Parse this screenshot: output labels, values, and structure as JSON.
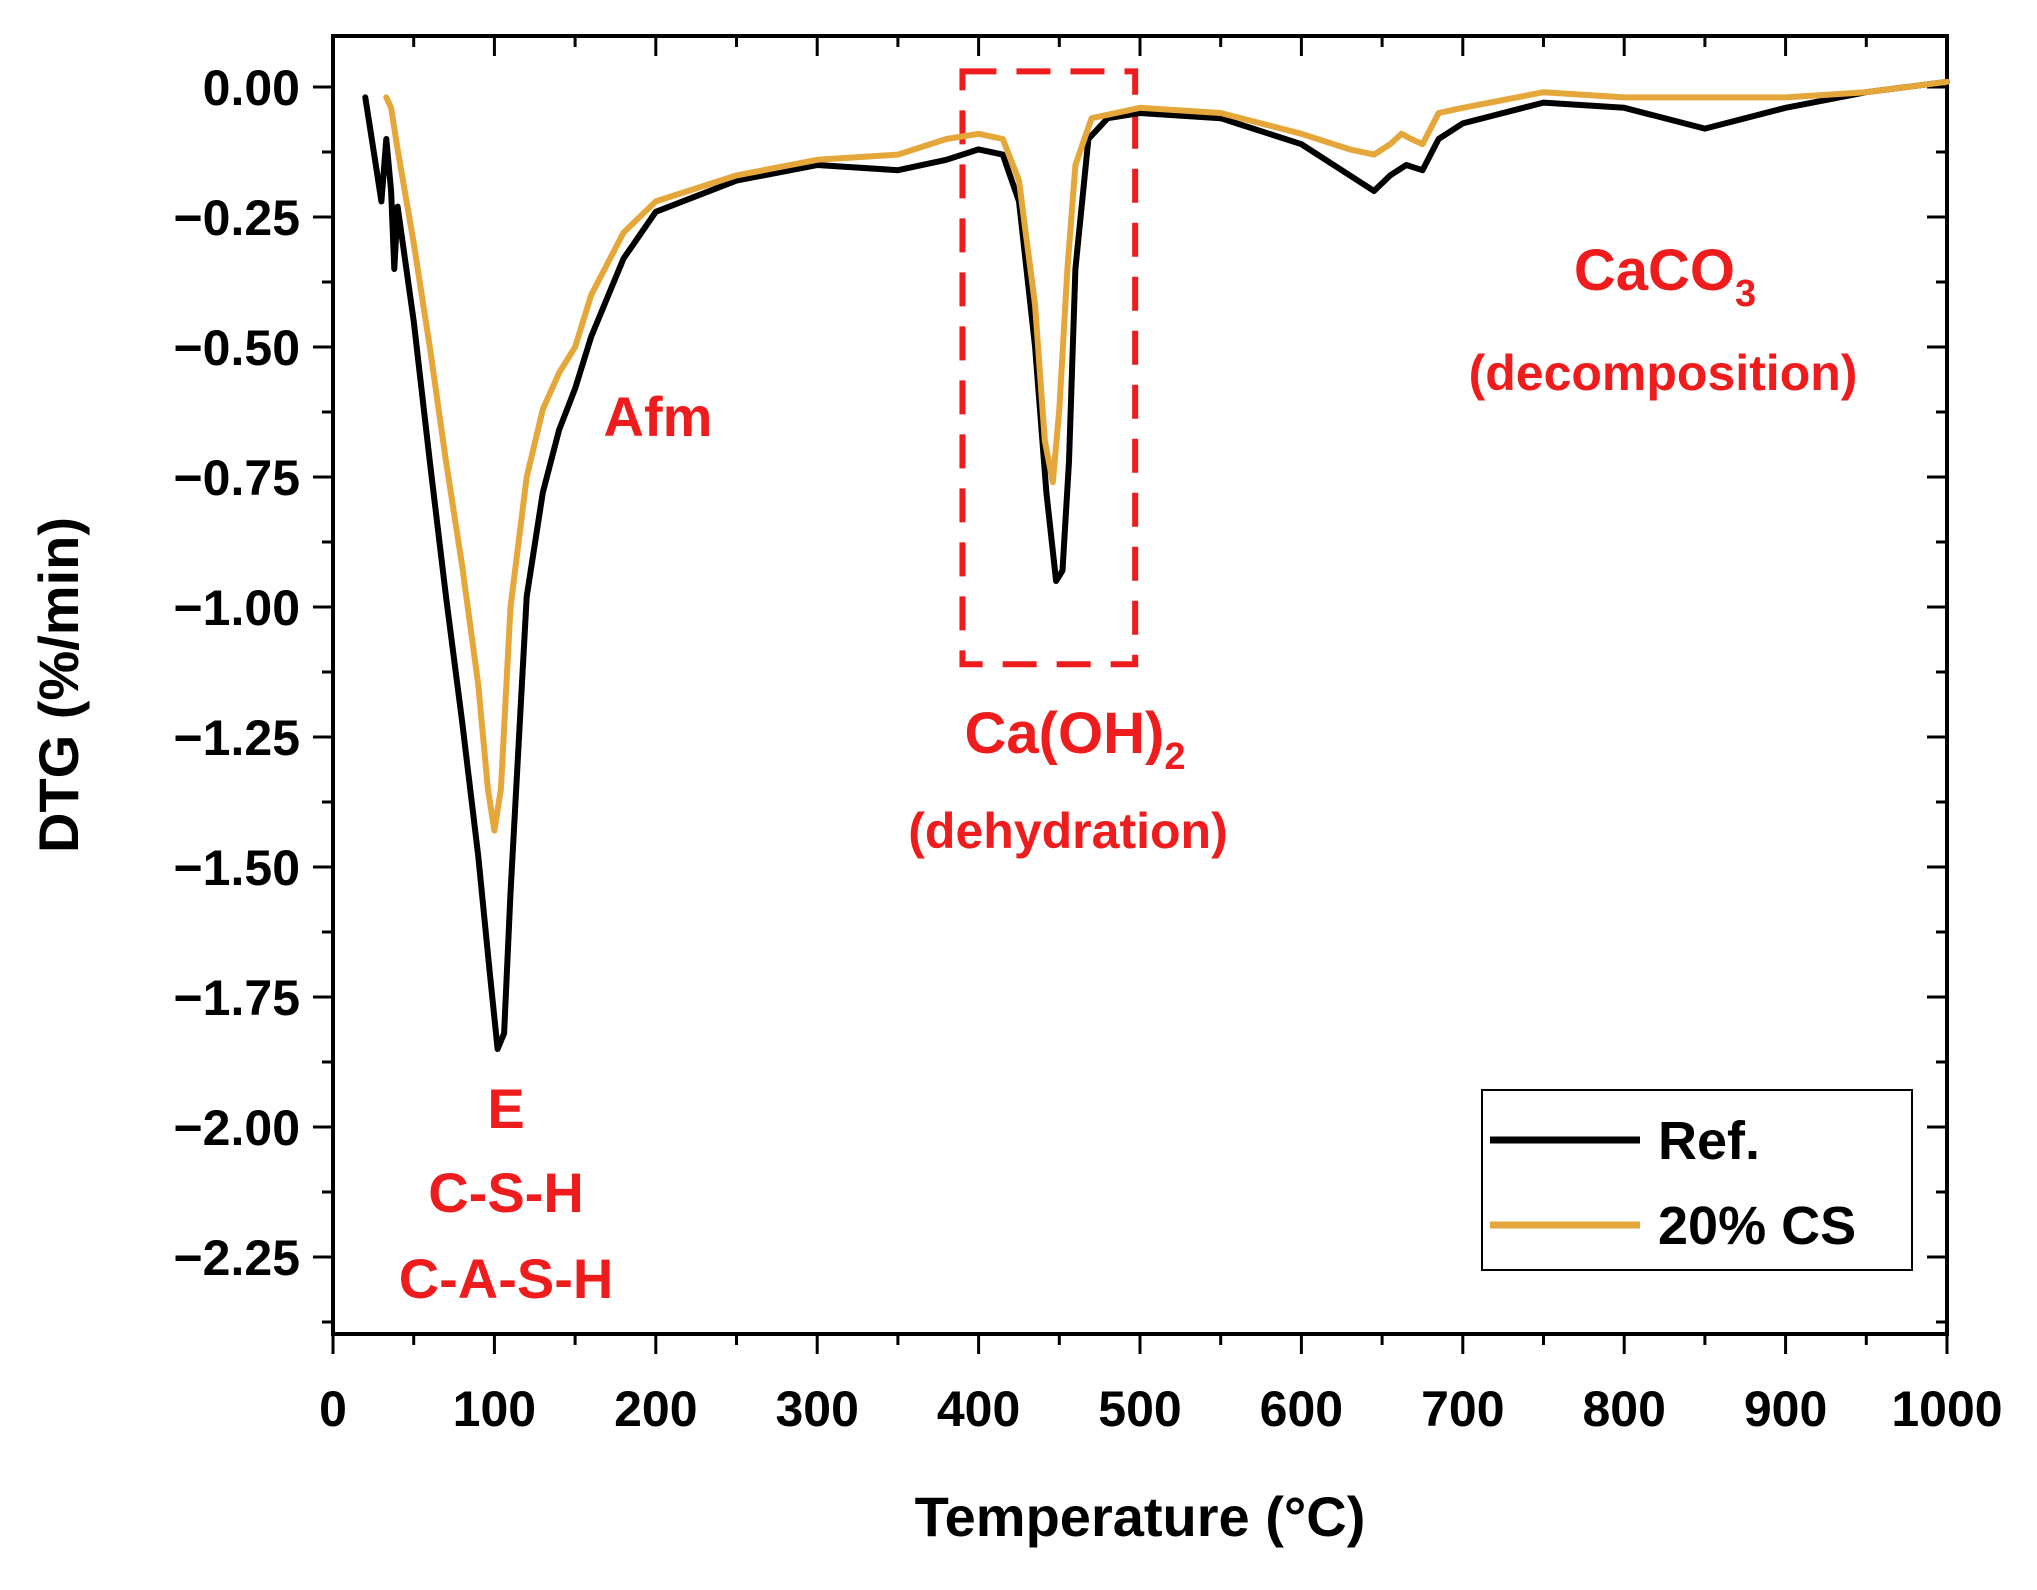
{
  "chart_data": {
    "type": "line",
    "title": "",
    "xlabel": "Temperature (°C)",
    "ylabel": "DTG (%/min)",
    "xlim": [
      0,
      1000
    ],
    "ylim": [
      -2.4,
      0.1
    ],
    "xticks": [
      0,
      100,
      200,
      300,
      400,
      500,
      600,
      700,
      800,
      900,
      1000
    ],
    "yticks": [
      0.0,
      -0.25,
      -0.5,
      -0.75,
      -1.0,
      -1.25,
      -1.5,
      -1.75,
      -2.0,
      -2.25
    ],
    "ytick_labels": [
      "0.00",
      "−0.25",
      "−0.50",
      "−0.75",
      "−1.00",
      "−1.25",
      "−1.50",
      "−1.75",
      "−2.00",
      "−2.25"
    ],
    "grid": false,
    "legend_position": "bottom-right",
    "series": [
      {
        "name": "Ref.",
        "color": "#000000",
        "x": [
          20,
          25,
          30,
          33,
          36,
          38,
          40,
          50,
          60,
          70,
          80,
          90,
          97,
          102,
          106,
          110,
          120,
          130,
          140,
          150,
          160,
          180,
          200,
          250,
          300,
          350,
          380,
          400,
          415,
          425,
          435,
          442,
          448,
          452,
          456,
          460,
          468,
          480,
          500,
          550,
          600,
          630,
          645,
          655,
          665,
          675,
          685,
          700,
          750,
          800,
          850,
          900,
          950,
          1000
        ],
        "y": [
          -0.02,
          -0.12,
          -0.22,
          -0.1,
          -0.2,
          -0.35,
          -0.23,
          -0.45,
          -0.72,
          -0.98,
          -1.22,
          -1.48,
          -1.7,
          -1.85,
          -1.82,
          -1.55,
          -0.98,
          -0.78,
          -0.66,
          -0.58,
          -0.48,
          -0.33,
          -0.24,
          -0.18,
          -0.15,
          -0.16,
          -0.14,
          -0.12,
          -0.13,
          -0.22,
          -0.5,
          -0.78,
          -0.95,
          -0.93,
          -0.72,
          -0.35,
          -0.1,
          -0.06,
          -0.05,
          -0.06,
          -0.11,
          -0.17,
          -0.2,
          -0.17,
          -0.15,
          -0.16,
          -0.1,
          -0.07,
          -0.03,
          -0.04,
          -0.08,
          -0.04,
          -0.01,
          0.01
        ]
      },
      {
        "name": "20% CS",
        "color": "#e6a73a",
        "x": [
          33,
          36,
          40,
          50,
          60,
          70,
          80,
          90,
          96,
          100,
          104,
          110,
          120,
          130,
          140,
          150,
          160,
          180,
          200,
          250,
          300,
          350,
          380,
          400,
          415,
          425,
          435,
          441,
          446,
          450,
          455,
          460,
          470,
          500,
          550,
          600,
          630,
          645,
          655,
          662,
          668,
          675,
          685,
          700,
          750,
          800,
          850,
          900,
          950,
          1000
        ],
        "y": [
          -0.02,
          -0.04,
          -0.12,
          -0.3,
          -0.5,
          -0.72,
          -0.92,
          -1.15,
          -1.35,
          -1.43,
          -1.35,
          -1.0,
          -0.75,
          -0.62,
          -0.55,
          -0.5,
          -0.4,
          -0.28,
          -0.22,
          -0.17,
          -0.14,
          -0.13,
          -0.1,
          -0.09,
          -0.1,
          -0.18,
          -0.42,
          -0.68,
          -0.76,
          -0.62,
          -0.35,
          -0.15,
          -0.06,
          -0.04,
          -0.05,
          -0.09,
          -0.12,
          -0.13,
          -0.11,
          -0.09,
          -0.1,
          -0.11,
          -0.05,
          -0.04,
          -0.01,
          -0.02,
          -0.02,
          -0.02,
          -0.01,
          0.01
        ]
      }
    ],
    "annotations": {
      "afm": "Afm",
      "e": "E",
      "csh": "C-S-H",
      "cash": "C-A-S-H",
      "caoh_main": "Ca(OH)",
      "caoh_sub": "2",
      "caoh_note": "(dehydration)",
      "caco_main": "CaCO",
      "caco_sub": "3",
      "caco_note": "(decomposition)"
    },
    "highlight_box": {
      "x_range": [
        390,
        497
      ],
      "y_range": [
        -1.11,
        0.03
      ],
      "color": "#ee1c1c"
    },
    "legend": [
      {
        "label": "Ref.",
        "color": "#000000"
      },
      {
        "label": "20% CS",
        "color": "#e6a73a"
      }
    ]
  }
}
